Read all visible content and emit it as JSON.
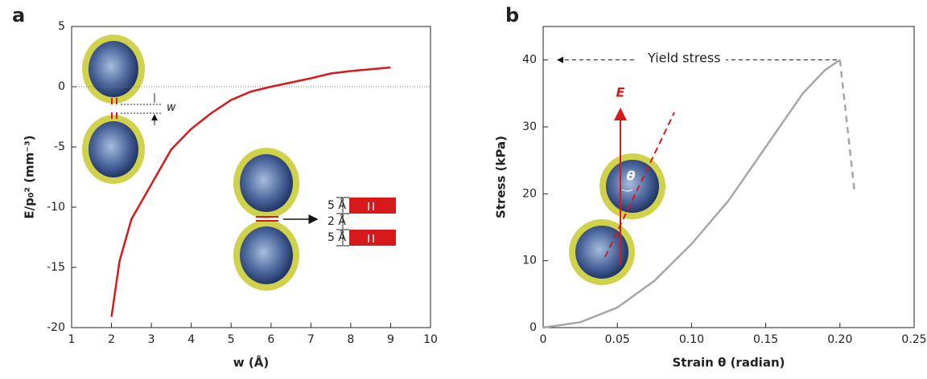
{
  "chart_data": [
    {
      "type": "line",
      "panel": "a",
      "xlabel": "w (Å)",
      "ylabel": "E/p₀² (mm⁻³)",
      "x": [
        2,
        2.2,
        2.5,
        3,
        3.5,
        4,
        4.5,
        5,
        5.5,
        6,
        6.5,
        7,
        7.5,
        8,
        8.5,
        9
      ],
      "values": [
        -19.1,
        -14.5,
        -11,
        -8.1,
        -5.2,
        -3.5,
        -2.2,
        -1.1,
        -0.4,
        0,
        0.35,
        0.7,
        1.1,
        1.3,
        1.45,
        1.6
      ],
      "color": "#d7191c",
      "reference_line": 0,
      "xlim": [
        1,
        10
      ],
      "xticks": [
        1,
        2,
        3,
        4,
        5,
        6,
        7,
        8,
        9,
        10
      ],
      "ylim": [
        -20,
        5
      ],
      "yticks": [
        -20,
        -15,
        -10,
        -5,
        0,
        5
      ],
      "annotations": [
        "w",
        "5 Å",
        "2 Å",
        "5 Å"
      ]
    },
    {
      "type": "line",
      "panel": "b",
      "xlabel": "Strain θ (radian)",
      "ylabel": "Stress (kPa)",
      "series": [
        {
          "color": "#a6a6a6",
          "dashed": false,
          "x": [
            0,
            0.025,
            0.05,
            0.075,
            0.1,
            0.125,
            0.15,
            0.175,
            0.19,
            0.2
          ],
          "values": [
            0,
            0.8,
            3,
            7,
            12.5,
            19,
            27,
            35,
            38.5,
            40
          ]
        },
        {
          "color": "#a6a6a6",
          "dashed": true,
          "x": [
            0.2,
            0.21
          ],
          "values": [
            40,
            20
          ]
        }
      ],
      "xlim": [
        0,
        0.25
      ],
      "xticks": [
        0,
        0.05,
        {
          "value": 0.1,
          "label": "0.10"
        },
        0.15,
        {
          "value": 0.2,
          "label": "0.20"
        },
        0.25
      ],
      "ylim": [
        0,
        45
      ],
      "yticks": [
        0,
        10,
        20,
        30,
        40
      ],
      "annotations": [
        "Yield stress",
        "E",
        "θ"
      ]
    }
  ]
}
